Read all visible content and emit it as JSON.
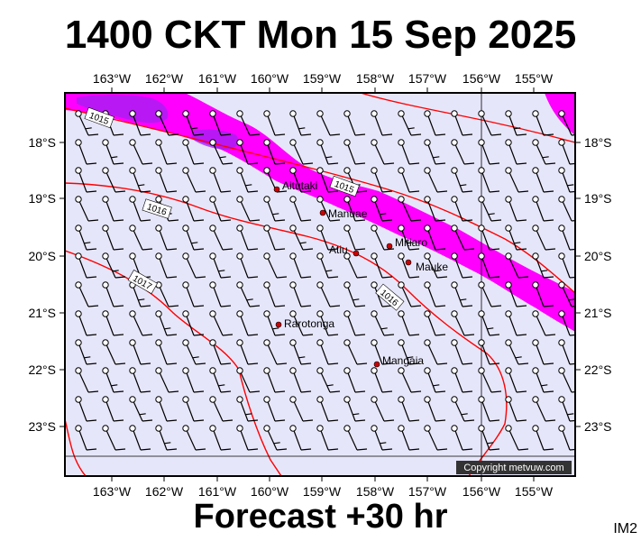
{
  "header": {
    "title": "1400 CKT Mon 15 Sep 2025"
  },
  "footer": {
    "forecast": "Forecast +30 hr",
    "model": "IM2"
  },
  "map": {
    "copyright": "Copyright metvuw.com",
    "colors": {
      "background": "#e6e6fa",
      "precip_light": "#ff00ff",
      "precip_heavy": "#a020f0",
      "isobar": "#ff0000",
      "town": "#cc0000"
    },
    "lon_ticks": [
      "163°W",
      "162°W",
      "161°W",
      "160°W",
      "159°W",
      "158°W",
      "157°W",
      "156°W",
      "155°W"
    ],
    "lat_ticks": [
      "18°S",
      "19°S",
      "20°S",
      "21°S",
      "22°S",
      "23°S"
    ],
    "isobars": [
      {
        "label": "1015",
        "value": 1015
      },
      {
        "label": "1015",
        "value": 1015
      },
      {
        "label": "1016",
        "value": 1016
      },
      {
        "label": "1016",
        "value": 1016
      },
      {
        "label": "1017",
        "value": 1017
      }
    ],
    "places": [
      {
        "name": "Aitutaki",
        "lon": -159.78,
        "lat": -18.86
      },
      {
        "name": "Manuae",
        "lon": -158.95,
        "lat": -19.26
      },
      {
        "name": "Mitiaro",
        "lon": -157.71,
        "lat": -19.87
      },
      {
        "name": "Atiu",
        "lon": -158.12,
        "lat": -19.99
      },
      {
        "name": "Mauke",
        "lon": -157.35,
        "lat": -20.15
      },
      {
        "name": "Rarotonga",
        "lon": -159.77,
        "lat": -21.22
      },
      {
        "name": "Mangaia",
        "lon": -157.93,
        "lat": -21.91
      }
    ]
  }
}
